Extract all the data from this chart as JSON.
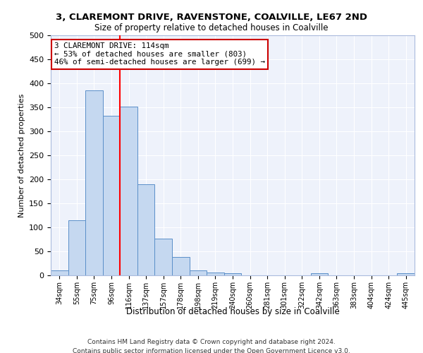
{
  "title": "3, CLAREMONT DRIVE, RAVENSTONE, COALVILLE, LE67 2ND",
  "subtitle": "Size of property relative to detached houses in Coalville",
  "xlabel": "Distribution of detached houses by size in Coalville",
  "ylabel": "Number of detached properties",
  "bar_color": "#c5d8f0",
  "bar_edge_color": "#5b8fc9",
  "background_color": "#eef2fb",
  "grid_color": "#ffffff",
  "categories": [
    "34sqm",
    "55sqm",
    "75sqm",
    "96sqm",
    "116sqm",
    "137sqm",
    "157sqm",
    "178sqm",
    "198sqm",
    "219sqm",
    "240sqm",
    "260sqm",
    "281sqm",
    "301sqm",
    "322sqm",
    "342sqm",
    "363sqm",
    "383sqm",
    "404sqm",
    "424sqm",
    "445sqm"
  ],
  "values": [
    10,
    115,
    385,
    332,
    352,
    190,
    76,
    38,
    10,
    6,
    4,
    0,
    0,
    0,
    0,
    5,
    0,
    0,
    0,
    0,
    5
  ],
  "red_line_x": 3.5,
  "annotation_text": "3 CLAREMONT DRIVE: 114sqm\n← 53% of detached houses are smaller (803)\n46% of semi-detached houses are larger (699) →",
  "annotation_box_color": "#ffffff",
  "annotation_box_edge": "#cc0000",
  "ylim": [
    0,
    500
  ],
  "yticks": [
    0,
    50,
    100,
    150,
    200,
    250,
    300,
    350,
    400,
    450,
    500
  ],
  "footer_line1": "Contains HM Land Registry data © Crown copyright and database right 2024.",
  "footer_line2": "Contains public sector information licensed under the Open Government Licence v3.0."
}
